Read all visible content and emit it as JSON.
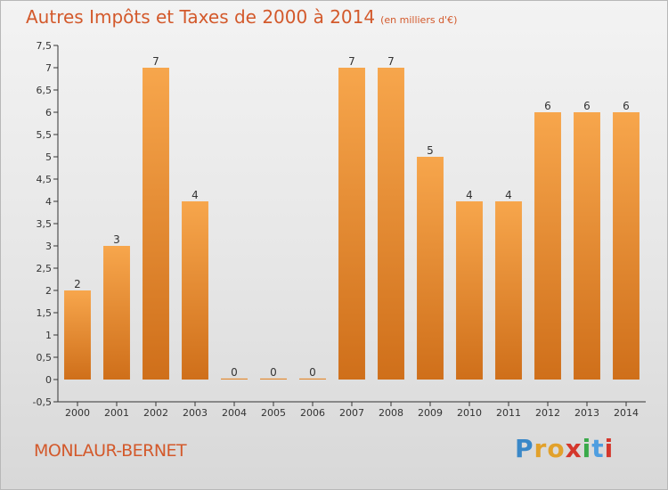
{
  "header": {
    "title": "Autres Impôts et Taxes de 2000 à 2014",
    "unit": "(en milliers d'€)"
  },
  "footer": {
    "commune": "MONLAUR-BERNET",
    "brand": "Proxiti"
  },
  "colors": {
    "bar_light": "#f7a64c",
    "bar_dark": "#cf6f1a",
    "accent": "#d3592b",
    "axis": "#333333",
    "brand_letters": [
      "#3a88c8",
      "#e2a12b",
      "#e2a12b",
      "#d4372c",
      "#3aaa4a",
      "#4f9ee0",
      "#d4372c"
    ]
  },
  "chart_data": {
    "type": "bar",
    "categories": [
      "2000",
      "2001",
      "2002",
      "2003",
      "2004",
      "2005",
      "2006",
      "2007",
      "2008",
      "2009",
      "2010",
      "2011",
      "2012",
      "2013",
      "2014"
    ],
    "values": [
      2,
      3,
      7,
      4,
      0,
      0,
      0,
      7,
      7,
      5,
      4,
      4,
      6,
      6,
      6
    ],
    "value_labels": [
      "2",
      "3",
      "7",
      "4",
      "0",
      "0",
      "0",
      "7",
      "7",
      "5",
      "4",
      "4",
      "6",
      "6",
      "6"
    ],
    "y_ticks": [
      "-0,5",
      "0",
      "0,5",
      "1",
      "1,5",
      "2",
      "2,5",
      "3",
      "3,5",
      "4",
      "4,5",
      "5",
      "5,5",
      "6",
      "6,5",
      "7",
      "7,5"
    ],
    "ylim": [
      -0.5,
      7.5
    ],
    "title": "Autres Impôts et Taxes de 2000 à 2014",
    "xlabel": "",
    "ylabel": "",
    "grid": false
  }
}
